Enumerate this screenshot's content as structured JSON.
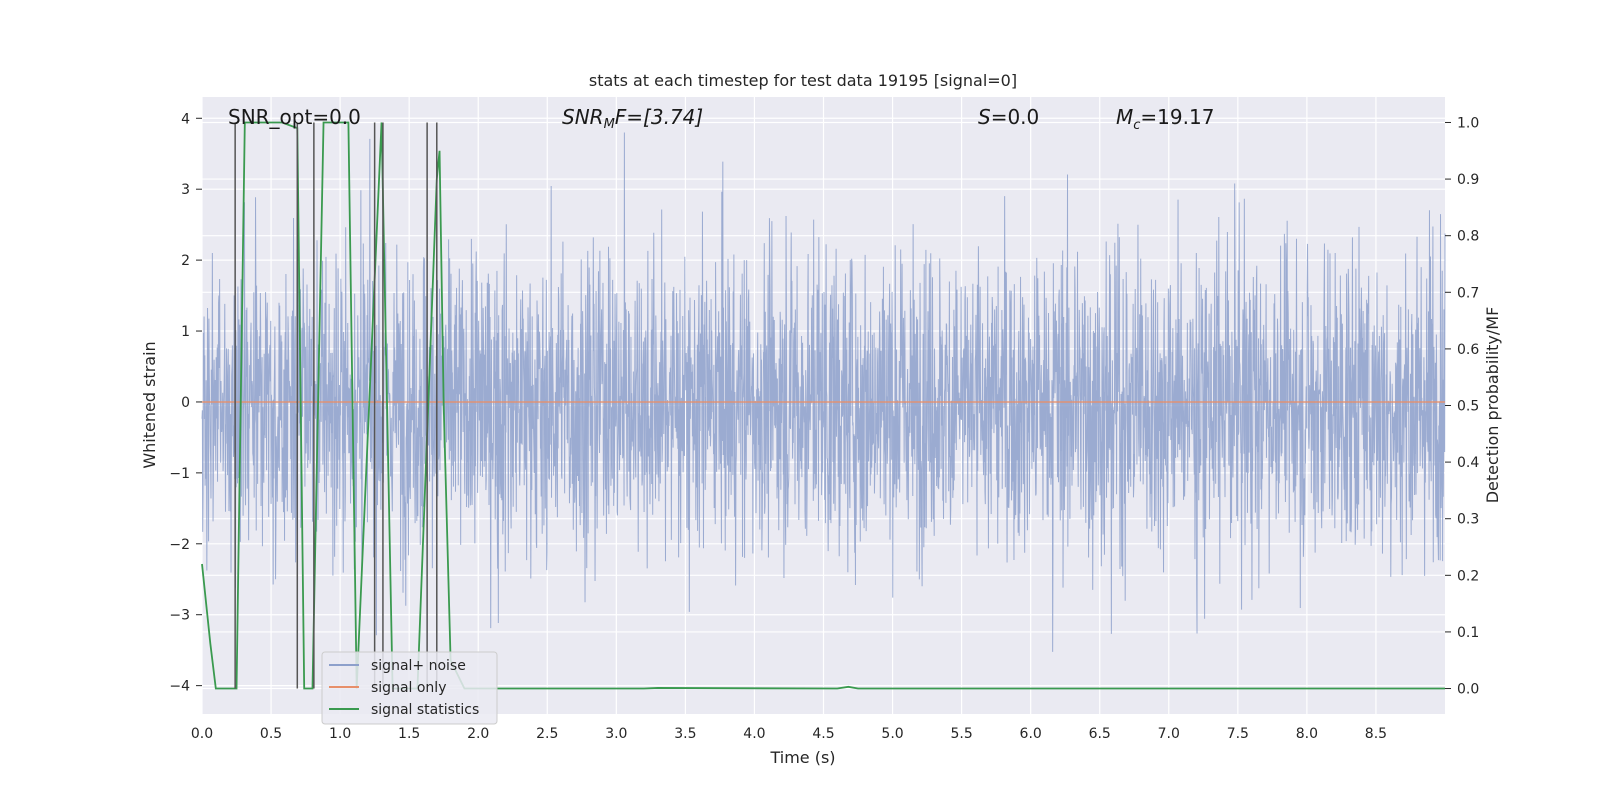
{
  "chart_data": {
    "type": "line",
    "title": "stats at each timestep for test data 19195 [signal=0]",
    "xlabel": "Time (s)",
    "ylabel": "Whitened strain",
    "y2label": "Detection probability/MF",
    "xlim": [
      0.0,
      9.0
    ],
    "ylim": [
      -4.4,
      4.3
    ],
    "y2lim": [
      -0.045,
      1.045
    ],
    "xticks": [
      "0.0",
      "0.5",
      "1.0",
      "1.5",
      "2.0",
      "2.5",
      "3.0",
      "3.5",
      "4.0",
      "4.5",
      "5.0",
      "5.5",
      "6.0",
      "6.5",
      "7.0",
      "7.5",
      "8.0",
      "8.5"
    ],
    "yticks": [
      "4",
      "3",
      "2",
      "1",
      "0",
      "−1",
      "−2",
      "−3",
      "−4"
    ],
    "y2ticks": [
      "1.0",
      "0.9",
      "0.8",
      "0.7",
      "0.6",
      "0.5",
      "0.4",
      "0.3",
      "0.2",
      "0.1",
      "0.0"
    ],
    "annotations": {
      "snr_opt": "SNR_opt=0.0",
      "snr_mf_base": "SNR",
      "snr_mf_sub": "M",
      "snr_mf_rest": "F=[3.74]",
      "s_label": "S",
      "s_rest": "=0.0",
      "mc_base": "M",
      "mc_sub": "c",
      "mc_rest": "=19.17"
    },
    "noise": {
      "typical_amplitude": 1.7,
      "peak_amplitude": 3.8,
      "description_values": "dense gaussian-like noise between about -2.4 and 2.6, spikes to about ±3.8"
    },
    "series": [
      {
        "name": "signal+ noise",
        "color": "#8da0cb"
      },
      {
        "name": "signal only",
        "color": "#e78f6a",
        "x": [
          0.0,
          9.0
        ],
        "y": [
          0.0,
          0.0
        ]
      },
      {
        "name": "signal statistics",
        "color": "#3a9a4f",
        "x": [
          0.0,
          0.06,
          0.1,
          0.25,
          0.31,
          0.58,
          0.69,
          0.74,
          0.8,
          0.88,
          1.06,
          1.12,
          1.3,
          1.38,
          1.56,
          1.7,
          1.72,
          1.75,
          1.8,
          1.9,
          3.2,
          3.3,
          4.6,
          4.68,
          4.75,
          9.0
        ],
        "y": [
          0.22,
          0.08,
          0.0,
          0.0,
          1.0,
          1.0,
          0.99,
          0.0,
          0.0,
          1.0,
          1.0,
          0.0,
          1.0,
          0.0,
          0.0,
          0.9,
          0.95,
          0.5,
          0.05,
          0.0,
          0.0,
          0.001,
          0.0,
          0.003,
          0.0,
          0.0
        ]
      }
    ],
    "vlines_x": [
      0.24,
      0.69,
      0.81,
      1.25,
      1.31,
      1.63,
      1.7
    ],
    "vlines_color": "#555555",
    "legend_position": "lower-left",
    "grid": true,
    "background": "#eaeaf2"
  }
}
